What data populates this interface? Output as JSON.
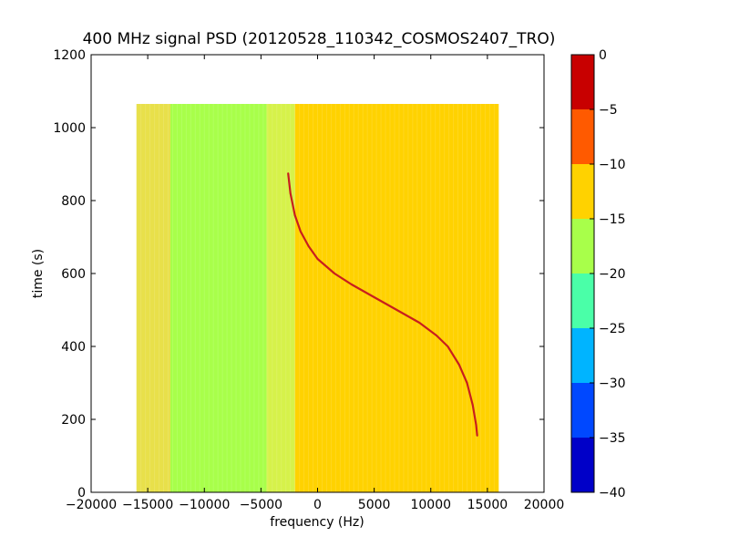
{
  "chart_data": {
    "type": "heatmap",
    "title": "400 MHz signal PSD (20120528_110342_COSMOS2407_TRO)",
    "xlabel": "frequency (Hz)",
    "ylabel": "time (s)",
    "xlim": [
      -20000,
      20000
    ],
    "ylim": [
      0,
      1200
    ],
    "xticks": [
      -20000,
      -15000,
      -10000,
      -5000,
      0,
      5000,
      10000,
      15000,
      20000
    ],
    "yticks": [
      0,
      200,
      400,
      600,
      800,
      1000,
      1200
    ],
    "data_extent": {
      "x": [
        -16000,
        16000
      ],
      "y": [
        0,
        1065
      ]
    },
    "background_bands": [
      {
        "x_start": -16000,
        "x_end": -13000,
        "level": -12.5,
        "color": "#e8e04a"
      },
      {
        "x_start": -13000,
        "x_end": -4500,
        "level": -17.5,
        "color": "#a8ff4a"
      },
      {
        "x_start": -4500,
        "x_end": -2000,
        "level": -14,
        "color": "#d6f24a"
      },
      {
        "x_start": -2000,
        "x_end": 16000,
        "level": -12.5,
        "color": "#ffd200"
      }
    ],
    "signal_trace": {
      "name": "",
      "level": -2,
      "points": [
        [
          -2600,
          875
        ],
        [
          -2400,
          820
        ],
        [
          -2000,
          760
        ],
        [
          -1500,
          715
        ],
        [
          -800,
          675
        ],
        [
          0,
          640
        ],
        [
          1500,
          600
        ],
        [
          3000,
          570
        ],
        [
          5000,
          535
        ],
        [
          7000,
          500
        ],
        [
          9000,
          465
        ],
        [
          10500,
          430
        ],
        [
          11500,
          400
        ],
        [
          12500,
          350
        ],
        [
          13200,
          300
        ],
        [
          13700,
          240
        ],
        [
          14000,
          185
        ],
        [
          14100,
          155
        ]
      ]
    },
    "colorbar": {
      "ticks": [
        0,
        -5,
        -10,
        -15,
        -20,
        -25,
        -30,
        -35,
        -40
      ],
      "range": [
        -40,
        0
      ],
      "levels": [
        {
          "from": -40,
          "to": -35,
          "color": "#0000c8"
        },
        {
          "from": -35,
          "to": -30,
          "color": "#0048ff"
        },
        {
          "from": -30,
          "to": -25,
          "color": "#00b4ff"
        },
        {
          "from": -25,
          "to": -20,
          "color": "#4affa8"
        },
        {
          "from": -20,
          "to": -15,
          "color": "#a8ff4a"
        },
        {
          "from": -15,
          "to": -10,
          "color": "#ffd200"
        },
        {
          "from": -10,
          "to": -5,
          "color": "#ff5a00"
        },
        {
          "from": -5,
          "to": 0,
          "color": "#c80000"
        }
      ]
    },
    "colors": {
      "trace": "#c81e1e",
      "frame": "#000000"
    }
  }
}
